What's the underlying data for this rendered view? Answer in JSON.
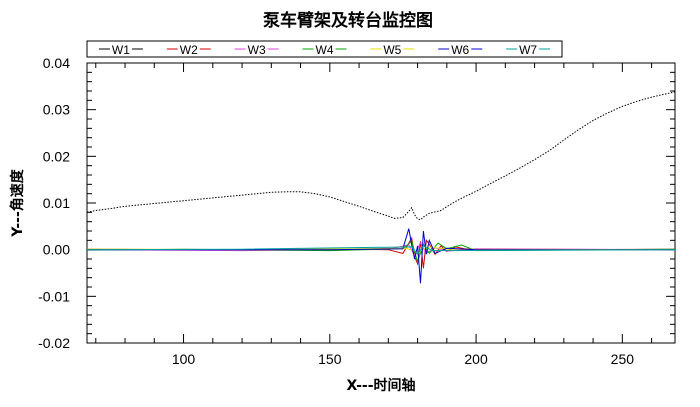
{
  "chart_data": {
    "type": "line",
    "title": "泵车臂架及转台监控图",
    "xlabel": "X---时间轴",
    "ylabel": "Y---角速度",
    "xlim": [
      67,
      268
    ],
    "ylim": [
      -0.02,
      0.04
    ],
    "xticks": [
      100,
      150,
      200,
      250
    ],
    "xtick_labels": [
      "100",
      "150",
      "200",
      "250"
    ],
    "yticks": [
      -0.02,
      -0.01,
      0.0,
      0.01,
      0.02,
      0.03,
      0.04
    ],
    "ytick_labels": [
      "-0.02",
      "-0.01",
      "0.00",
      "0.01",
      "0.02",
      "0.03",
      "0.04"
    ],
    "legend": {
      "placement": "top",
      "entries": [
        "W1",
        "W2",
        "W3",
        "W4",
        "W5",
        "W6",
        "W7"
      ]
    },
    "grid": false,
    "series": [
      {
        "name": "W1",
        "color": "#000000",
        "x": [
          67,
          70,
          75,
          80,
          85,
          90,
          95,
          100,
          105,
          110,
          115,
          120,
          125,
          130,
          135,
          140,
          145,
          150,
          155,
          160,
          165,
          170,
          172,
          175,
          177,
          178,
          179,
          180,
          181,
          182,
          184,
          186,
          188,
          190,
          192,
          195,
          200,
          205,
          210,
          215,
          220,
          225,
          230,
          235,
          240,
          245,
          250,
          255,
          260,
          265,
          268
        ],
        "values": [
          0.008,
          0.0084,
          0.0088,
          0.0093,
          0.0096,
          0.0099,
          0.0102,
          0.0105,
          0.0108,
          0.0111,
          0.0114,
          0.0117,
          0.012,
          0.0123,
          0.0124,
          0.0124,
          0.012,
          0.0113,
          0.0103,
          0.0093,
          0.0082,
          0.0072,
          0.0067,
          0.0069,
          0.0082,
          0.009,
          0.0075,
          0.0066,
          0.0064,
          0.007,
          0.0078,
          0.0081,
          0.0084,
          0.0092,
          0.01,
          0.011,
          0.0125,
          0.0142,
          0.0158,
          0.0175,
          0.0193,
          0.0212,
          0.0235,
          0.0257,
          0.0277,
          0.0293,
          0.0307,
          0.0318,
          0.0327,
          0.0334,
          0.0338
        ]
      },
      {
        "name": "W2",
        "color": "#d00000",
        "x": [
          67,
          100,
          150,
          170,
          175,
          178,
          179,
          180,
          181,
          182,
          183,
          184,
          186,
          188,
          190,
          193,
          196,
          200,
          230,
          268
        ],
        "values": [
          0.0001,
          0.0,
          0.0001,
          0.0,
          -0.0008,
          0.0025,
          -0.0015,
          -0.003,
          0.0018,
          -0.004,
          0.002,
          0.0012,
          -0.001,
          0.0008,
          -0.0004,
          0.0006,
          0.0002,
          0.0001,
          0.0,
          0.0001
        ]
      },
      {
        "name": "W3",
        "color": "#e040e0",
        "x": [
          67,
          120,
          170,
          177,
          179,
          181,
          183,
          186,
          190,
          200,
          268
        ],
        "values": [
          0.0,
          -0.0002,
          0.0001,
          0.001,
          -0.0012,
          0.0015,
          -0.0008,
          0.0004,
          -0.0003,
          0.0002,
          0.0
        ]
      },
      {
        "name": "W4",
        "color": "#00aa00",
        "x": [
          67,
          100,
          150,
          175,
          178,
          180,
          182,
          184,
          187,
          190,
          195,
          200,
          268
        ],
        "values": [
          -0.0001,
          0.0001,
          -0.0002,
          0.0002,
          0.0018,
          -0.0026,
          0.0012,
          -0.0008,
          0.0014,
          0.0002,
          0.001,
          -0.0002,
          0.0001
        ]
      },
      {
        "name": "W5",
        "color": "#e0e000",
        "x": [
          67,
          130,
          176,
          180,
          184,
          190,
          268
        ],
        "values": [
          0.0001,
          0.0,
          0.0003,
          -0.0005,
          0.0006,
          0.0001,
          0.0
        ]
      },
      {
        "name": "W6",
        "color": "#0000cc",
        "x": [
          67,
          150,
          175,
          177,
          178,
          179,
          180,
          181,
          182,
          183,
          184,
          186,
          190,
          200,
          268
        ],
        "values": [
          0.0,
          0.0,
          0.0002,
          0.0045,
          0.001,
          -0.002,
          0.0008,
          -0.0072,
          0.004,
          -0.001,
          0.002,
          -0.0008,
          0.0003,
          0.0,
          0.0
        ]
      },
      {
        "name": "W7",
        "color": "#00a0a0",
        "x": [
          67,
          120,
          178,
          180,
          182,
          185,
          268
        ],
        "values": [
          0.0,
          0.0001,
          0.0006,
          -0.001,
          0.0008,
          -0.0002,
          0.0
        ]
      }
    ]
  }
}
